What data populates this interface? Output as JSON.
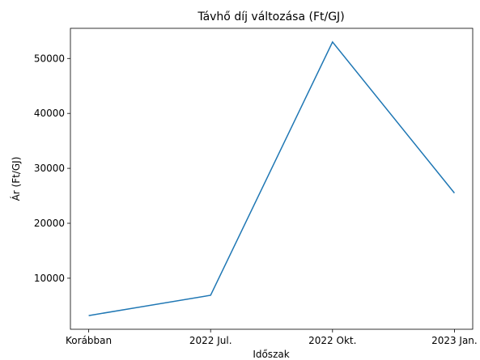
{
  "chart_data": {
    "type": "line",
    "title": "Távhő díj változása (Ft/GJ)",
    "x_label": "Időszak",
    "y_label": "Ár (Ft/GJ)",
    "categories": [
      "Korábban",
      "2022 Jul.",
      "2022 Okt.",
      "2023 Jan."
    ],
    "series": [
      {
        "name": "Ár",
        "color": "#1f77b4",
        "values": [
          3200,
          6900,
          53000,
          25500
        ]
      }
    ],
    "ylim": [
      710,
      55490
    ],
    "yticks": [
      10000,
      20000,
      30000,
      40000,
      50000
    ],
    "grid": false
  }
}
